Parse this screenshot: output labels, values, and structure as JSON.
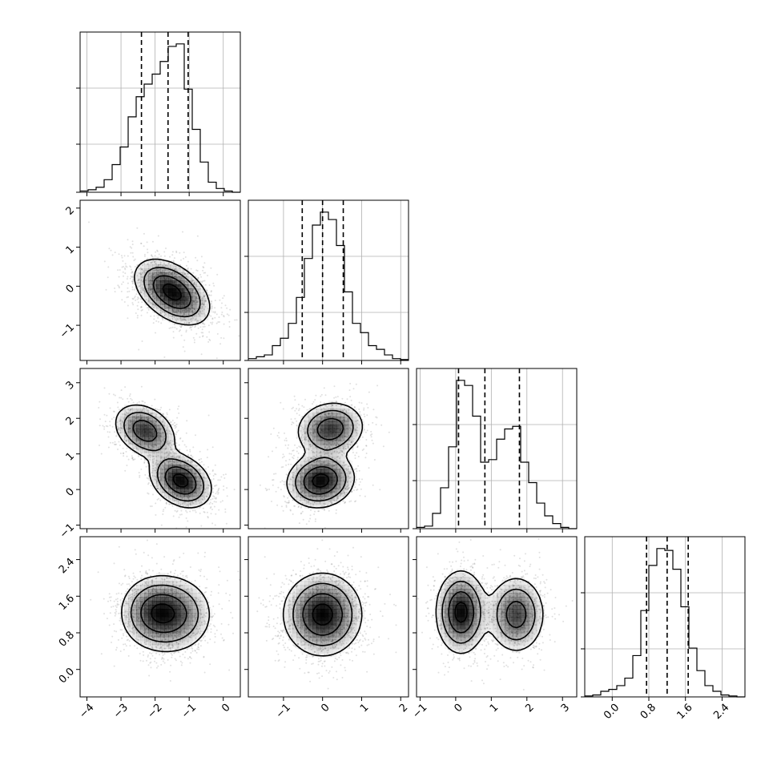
{
  "chart_data": {
    "type": "corner",
    "title": "",
    "parameters": 4,
    "ranges": [
      [
        -4.2,
        0.5
      ],
      [
        -1.9,
        2.2
      ],
      [
        -1.1,
        3.4
      ],
      [
        -0.6,
        2.9
      ]
    ],
    "ticks": [
      [
        -4,
        -3,
        -2,
        -1,
        0
      ],
      [
        -1,
        0,
        1,
        2
      ],
      [
        -1,
        0,
        1,
        2,
        3
      ],
      [
        0.0,
        0.8,
        1.6,
        2.4
      ]
    ],
    "tick_labels": [
      [
        "−4",
        "−3",
        "−2",
        "−1",
        "0"
      ],
      [
        "−1",
        "0",
        "1",
        "2"
      ],
      [
        "−1",
        "0",
        "1",
        "2",
        "3"
      ],
      [
        "0.0",
        "0.8",
        "1.6",
        "2.4"
      ]
    ],
    "quantiles": [
      [
        -2.4,
        -1.62,
        -1.03
      ],
      [
        -0.52,
        0.0,
        0.53
      ],
      [
        0.08,
        0.82,
        1.79
      ],
      [
        0.75,
        1.2,
        1.66
      ]
    ],
    "histograms": [
      {
        "edges": [
          -4.2,
          -3.965,
          -3.73,
          -3.495,
          -3.26,
          -3.025,
          -2.79,
          -2.555,
          -2.32,
          -2.085,
          -1.85,
          -1.615,
          -1.38,
          -1.145,
          -0.91,
          -0.675,
          -0.44,
          -0.205,
          0.03,
          0.265,
          0.5
        ],
        "counts": [
          0.5,
          1,
          2,
          5,
          11,
          18,
          30,
          38,
          43,
          47,
          52,
          58,
          59,
          41,
          25,
          12,
          4,
          1.5,
          0.5,
          0
        ]
      },
      {
        "edges": [
          -1.9,
          -1.695,
          -1.49,
          -1.285,
          -1.08,
          -0.875,
          -0.67,
          -0.465,
          -0.26,
          -0.055,
          0.15,
          0.355,
          0.56,
          0.765,
          0.97,
          1.175,
          1.38,
          1.585,
          1.79,
          1.995,
          2.2
        ],
        "counts": [
          1,
          2,
          3,
          8,
          12,
          20,
          34,
          55,
          73,
          80,
          76,
          62,
          37,
          20,
          15,
          8,
          6,
          3,
          1,
          0.5
        ]
      },
      {
        "edges": [
          -1.1,
          -0.875,
          -0.65,
          -0.425,
          -0.2,
          0.025,
          0.25,
          0.475,
          0.7,
          0.925,
          1.15,
          1.375,
          1.6,
          1.825,
          2.05,
          2.275,
          2.5,
          2.725,
          2.95,
          3.175,
          3.4
        ],
        "counts": [
          0.5,
          1,
          6,
          16,
          32,
          58,
          56,
          44,
          26,
          27,
          35,
          39,
          40,
          26,
          18,
          10,
          5,
          2,
          0.5,
          0
        ]
      },
      {
        "edges": [
          -0.6,
          -0.425,
          -0.25,
          -0.075,
          0.1,
          0.275,
          0.45,
          0.625,
          0.8,
          0.975,
          1.15,
          1.325,
          1.5,
          1.675,
          1.85,
          2.025,
          2.2,
          2.375,
          2.55,
          2.725,
          2.9
        ],
        "counts": [
          0.5,
          1,
          3,
          4,
          6,
          10,
          22,
          46,
          70,
          79,
          78,
          68,
          48,
          26,
          14,
          6,
          3,
          1,
          0.5,
          0
        ]
      }
    ],
    "mixtures": {
      "1_0": [
        {
          "mx": -1.5,
          "my": -0.15,
          "sx": 0.55,
          "sy": 0.42,
          "r": -0.45,
          "w": 1
        }
      ],
      "2_0": [
        {
          "mx": -1.25,
          "my": 0.25,
          "sx": 0.45,
          "sy": 0.38,
          "r": -0.3,
          "w": 0.55
        },
        {
          "mx": -2.3,
          "my": 1.65,
          "sx": 0.45,
          "sy": 0.38,
          "r": -0.3,
          "w": 0.45
        }
      ],
      "2_1": [
        {
          "mx": -0.05,
          "my": 0.25,
          "sx": 0.43,
          "sy": 0.38,
          "r": 0.1,
          "w": 0.55
        },
        {
          "mx": 0.2,
          "my": 1.7,
          "sx": 0.43,
          "sy": 0.38,
          "r": 0.1,
          "w": 0.45
        }
      ],
      "3_0": [
        {
          "mx": -1.45,
          "my": 1.2,
          "sx": 0.58,
          "sy": 0.42,
          "r": 0.0,
          "w": 0.6
        },
        {
          "mx": -2.1,
          "my": 1.25,
          "sx": 0.5,
          "sy": 0.4,
          "r": 0.0,
          "w": 0.4
        }
      ],
      "3_1": [
        {
          "mx": 0.0,
          "my": 1.2,
          "sx": 0.5,
          "sy": 0.45,
          "r": 0.0,
          "w": 1
        }
      ],
      "3_2": [
        {
          "mx": 0.15,
          "my": 1.25,
          "sx": 0.35,
          "sy": 0.45,
          "r": 0.0,
          "w": 0.55
        },
        {
          "mx": 1.7,
          "my": 1.2,
          "sx": 0.4,
          "sy": 0.42,
          "r": 0.0,
          "w": 0.45
        }
      ]
    },
    "contour_levels_sigma": [
      0.5,
      1.0,
      1.5,
      2.0
    ],
    "grid": true,
    "colors": {
      "line": "#000000",
      "grid": "#b0b0b0",
      "density": "#000000",
      "points": "#555555"
    }
  }
}
